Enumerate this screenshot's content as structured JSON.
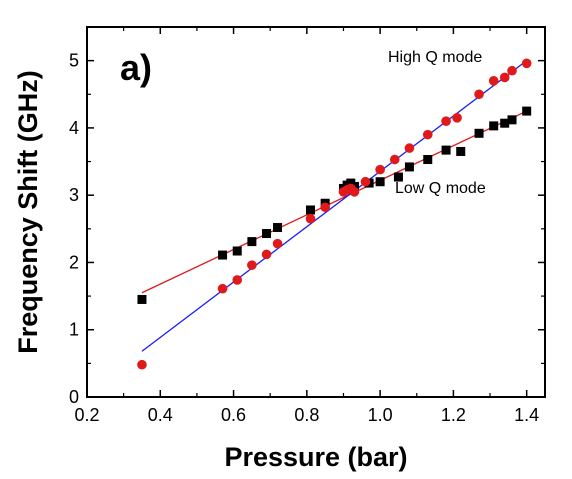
{
  "chart_data": {
    "type": "scatter",
    "panel_label": "a)",
    "xlabel": "Pressure (bar)",
    "ylabel": "Frequency Shift (GHz)",
    "xlim": [
      0.2,
      1.45
    ],
    "ylim": [
      0,
      5.5
    ],
    "x_ticks": [
      "0.2",
      "0.4",
      "0.6",
      "0.8",
      "1.0",
      "1.2",
      "1.4"
    ],
    "y_ticks": [
      "0",
      "1",
      "2",
      "3",
      "4",
      "5"
    ],
    "grid": false,
    "annotations": [
      "High Q mode",
      "Low Q mode"
    ],
    "series": [
      {
        "marker": "square",
        "color": "#000000",
        "fit_color": "#e01a1a",
        "fit_line": [
          [
            0.35,
            1.55
          ],
          [
            1.4,
            4.25
          ]
        ],
        "points": [
          [
            0.35,
            1.45
          ],
          [
            0.57,
            2.11
          ],
          [
            0.61,
            2.17
          ],
          [
            0.65,
            2.31
          ],
          [
            0.69,
            2.43
          ],
          [
            0.72,
            2.52
          ],
          [
            0.81,
            2.78
          ],
          [
            0.85,
            2.88
          ],
          [
            0.9,
            3.1
          ],
          [
            0.91,
            3.15
          ],
          [
            0.92,
            3.18
          ],
          [
            0.93,
            3.13
          ],
          [
            0.97,
            3.18
          ],
          [
            1.0,
            3.2
          ],
          [
            1.05,
            3.27
          ],
          [
            1.08,
            3.42
          ],
          [
            1.13,
            3.53
          ],
          [
            1.18,
            3.67
          ],
          [
            1.22,
            3.65
          ],
          [
            1.27,
            3.92
          ],
          [
            1.31,
            4.03
          ],
          [
            1.34,
            4.07
          ],
          [
            1.36,
            4.12
          ],
          [
            1.4,
            4.25
          ]
        ]
      },
      {
        "marker": "circle",
        "color": "#e01a1a",
        "fit_color": "#1a1aff",
        "fit_line": [
          [
            0.35,
            0.68
          ],
          [
            1.4,
            5.0
          ]
        ],
        "points": [
          [
            0.35,
            0.48
          ],
          [
            0.57,
            1.61
          ],
          [
            0.61,
            1.74
          ],
          [
            0.65,
            1.96
          ],
          [
            0.69,
            2.12
          ],
          [
            0.72,
            2.28
          ],
          [
            0.81,
            2.65
          ],
          [
            0.85,
            2.82
          ],
          [
            0.9,
            3.05
          ],
          [
            0.91,
            3.08
          ],
          [
            0.92,
            3.1
          ],
          [
            0.93,
            3.05
          ],
          [
            0.96,
            3.2
          ],
          [
            1.0,
            3.38
          ],
          [
            1.04,
            3.53
          ],
          [
            1.08,
            3.7
          ],
          [
            1.13,
            3.9
          ],
          [
            1.18,
            4.1
          ],
          [
            1.21,
            4.15
          ],
          [
            1.27,
            4.5
          ],
          [
            1.31,
            4.7
          ],
          [
            1.34,
            4.75
          ],
          [
            1.36,
            4.85
          ],
          [
            1.4,
            4.96
          ]
        ]
      }
    ]
  }
}
